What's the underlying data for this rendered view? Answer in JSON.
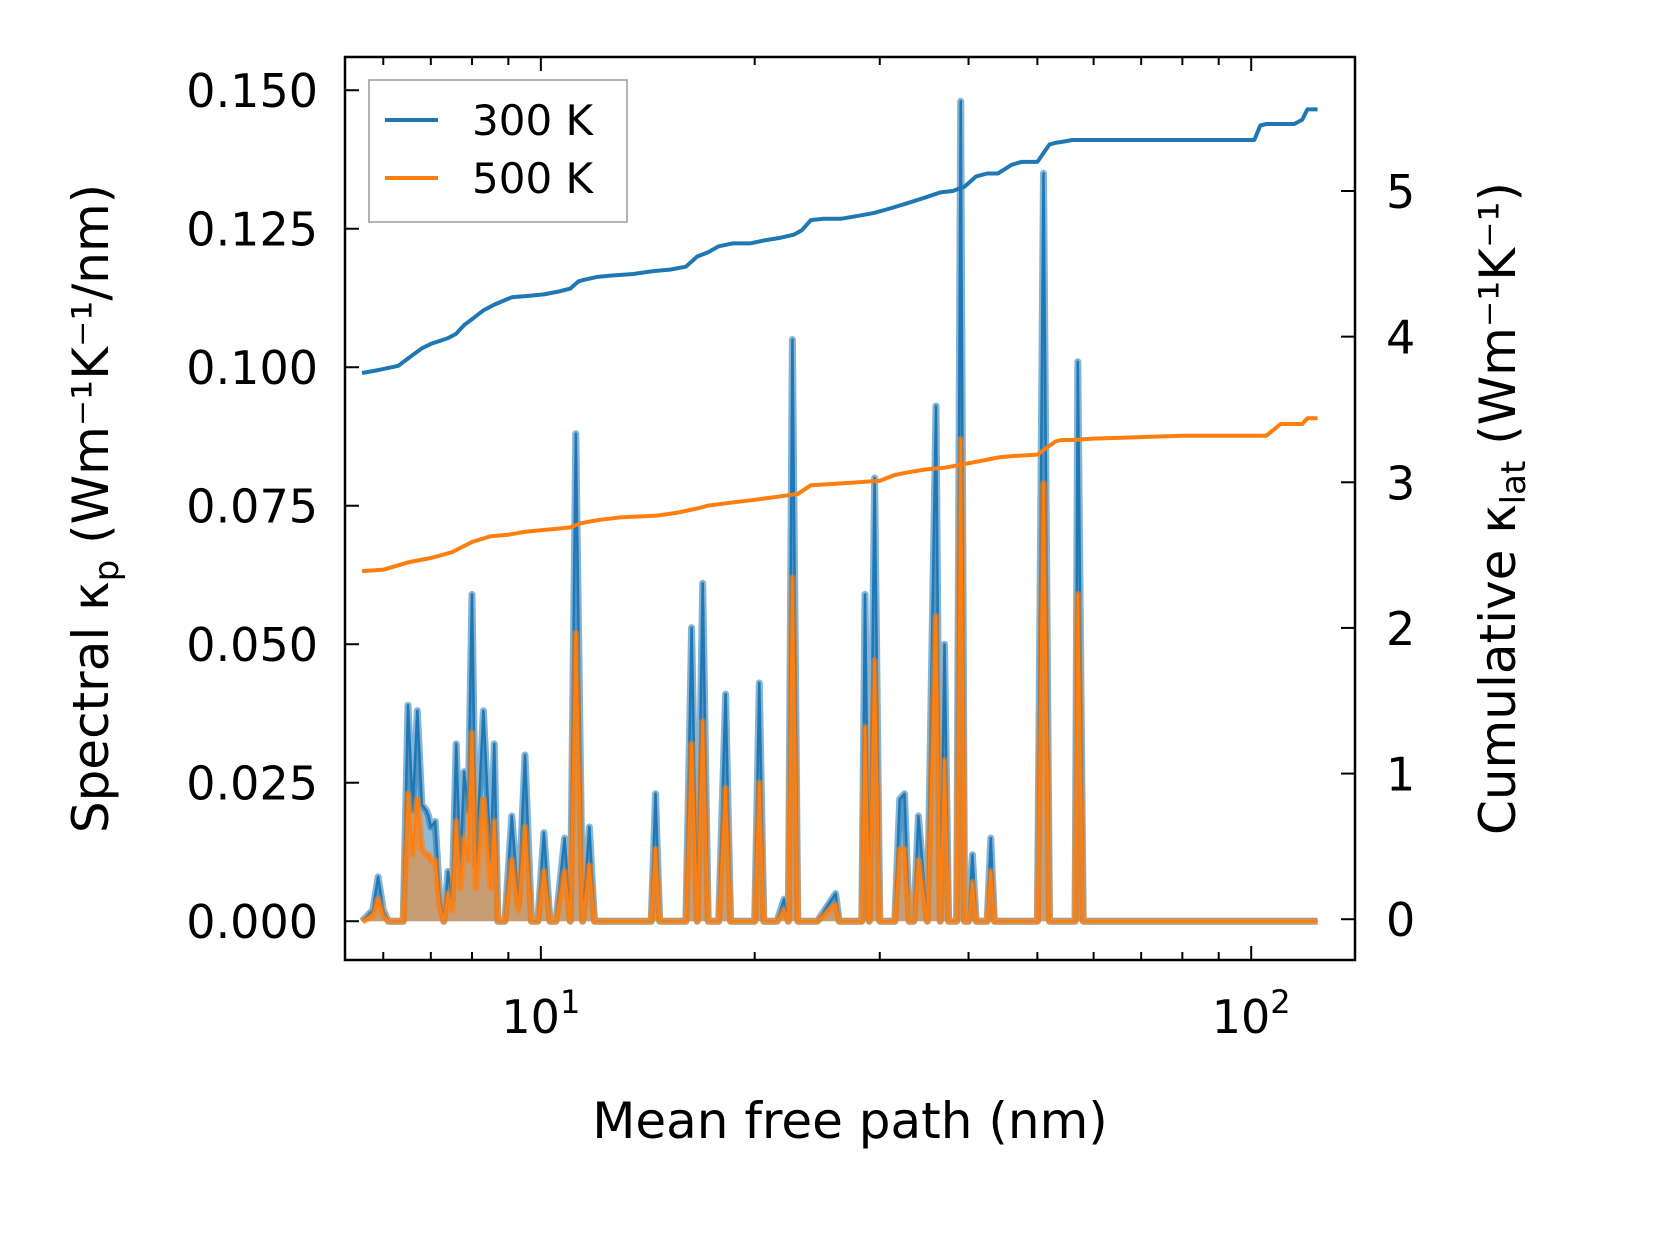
{
  "chart_data": {
    "type": "line",
    "xlabel": "Mean free path (nm)",
    "ylabel_left": "Spectral κ",
    "ylabel_left_sub": "p",
    "ylabel_left_units": "(Wm⁻¹K⁻¹/nm)",
    "ylabel_right": "Cumulative κ",
    "ylabel_right_sub": "lat",
    "ylabel_right_units": "(Wm⁻¹K⁻¹)",
    "xscale": "log",
    "xlim": [
      5.3,
      140
    ],
    "ylim_left": [
      -0.007,
      0.156
    ],
    "ylim_right": [
      -0.28,
      5.92
    ],
    "xticks": [
      {
        "value": 10,
        "base": "10",
        "exp": "1"
      },
      {
        "value": 100,
        "base": "10",
        "exp": "2"
      }
    ],
    "yticks_left": [
      "0.000",
      "0.025",
      "0.050",
      "0.075",
      "0.100",
      "0.125",
      "0.150"
    ],
    "yticks_left_values": [
      0,
      0.025,
      0.05,
      0.075,
      0.1,
      0.125,
      0.15
    ],
    "yticks_right": [
      "0",
      "1",
      "2",
      "3",
      "4",
      "5"
    ],
    "yticks_right_values": [
      0,
      1,
      2,
      3,
      4,
      5
    ],
    "legend": {
      "location": "upper-left",
      "entries": [
        "300 K",
        "500 K"
      ]
    },
    "series": [
      {
        "name": "300 K",
        "color": "#1f77b4",
        "spectral_x": [
          5.6,
          5.8,
          5.9,
          6.0,
          6.1,
          6.4,
          6.5,
          6.6,
          6.7,
          6.8,
          6.9,
          6.95,
          7.0,
          7.1,
          7.2,
          7.3,
          7.4,
          7.5,
          7.6,
          7.7,
          7.8,
          7.9,
          8.0,
          8.1,
          8.3,
          8.5,
          8.6,
          8.7,
          8.8,
          8.9,
          9.1,
          9.3,
          9.5,
          9.7,
          9.9,
          10.1,
          10.3,
          10.5,
          10.8,
          11.0,
          11.2,
          11.45,
          11.7,
          11.9,
          12.1,
          12.3,
          12.6,
          14.3,
          14.5,
          14.7,
          16.0,
          16.3,
          16.6,
          16.9,
          17.2,
          17.5,
          17.8,
          18.2,
          18.5,
          18.8,
          20.0,
          20.3,
          20.6,
          21.5,
          22.0,
          22.3,
          22.6,
          23.0,
          23.3,
          23.7,
          24.0,
          24.5,
          26.0,
          26.3,
          26.6,
          27.5,
          28.0,
          28.3,
          28.6,
          29.0,
          29.5,
          30.0,
          30.5,
          31.0,
          31.5,
          32.0,
          32.5,
          33.0,
          33.5,
          34.0,
          35.0,
          36.0,
          36.5,
          37.0,
          37.5,
          38.0,
          38.5,
          39.0,
          39.5,
          40.0,
          40.5,
          41.0,
          41.5,
          42.0,
          42.5,
          43.0,
          43.5,
          44.5,
          45.0,
          45.5,
          46.0,
          50.0,
          51.0,
          52.0,
          52.5,
          53.0,
          56.0,
          56.5,
          57.0,
          58.0,
          64.0,
          65.0,
          66.0,
          102.0,
          104.0,
          106.0,
          108.0,
          110.0,
          117.0,
          118.0,
          120.0,
          122.0,
          124.0
        ],
        "spectral_y": [
          0.0,
          0.002,
          0.008,
          0.002,
          0.0,
          0.0,
          0.039,
          0.02,
          0.038,
          0.021,
          0.02,
          0.019,
          0.017,
          0.018,
          0.005,
          0.0,
          0.009,
          0.004,
          0.032,
          0.01,
          0.027,
          0.02,
          0.059,
          0.01,
          0.038,
          0.011,
          0.032,
          0.0,
          0.0,
          0.0,
          0.019,
          0.003,
          0.03,
          0.0,
          0.0,
          0.016,
          0.0,
          0.0,
          0.015,
          0.0,
          0.088,
          0.0,
          0.017,
          0.0,
          0.0,
          0.0,
          0.0,
          0.0,
          0.023,
          0.0,
          0.0,
          0.053,
          0.0,
          0.061,
          0.0,
          0.0,
          0.0,
          0.041,
          0.0,
          0.0,
          0.0,
          0.043,
          0.0,
          0.0,
          0.004,
          0.0,
          0.105,
          0.0,
          0.0,
          0.0,
          0.0,
          0.0,
          0.005,
          0.0,
          0.0,
          0.0,
          0.0,
          0.0,
          0.059,
          0.0,
          0.08,
          0.0,
          0.0,
          0.0,
          0.0,
          0.022,
          0.023,
          0.0,
          0.0,
          0.019,
          0.0,
          0.093,
          0.0,
          0.05,
          0.0,
          0.0,
          0.0,
          0.148,
          0.0,
          0.0,
          0.012,
          0.0,
          0.0,
          0.0,
          0.0,
          0.015,
          0.0,
          0.0,
          0.0,
          0.0,
          0.0,
          0.0,
          0.135,
          0.0,
          0.0,
          0.0,
          0.0,
          0.0,
          0.101,
          0.0,
          0.0,
          0.0,
          0.0,
          0.0,
          0.0,
          0.0,
          0.0,
          0.0,
          0.0,
          0.0,
          0.0,
          0.0,
          0.0
        ],
        "cumulative_x": [
          5.6,
          5.9,
          6.3,
          6.5,
          6.8,
          7.0,
          7.2,
          7.4,
          7.6,
          7.8,
          8.0,
          8.3,
          8.6,
          9.1,
          9.6,
          10.1,
          10.6,
          11.0,
          11.3,
          11.5,
          12.0,
          12.6,
          13.5,
          14.4,
          15.2,
          16.0,
          16.6,
          17.2,
          17.8,
          18.6,
          19.7,
          20.6,
          21.8,
          22.7,
          23.3,
          24.0,
          25.0,
          26.5,
          28.0,
          29.5,
          31.0,
          32.5,
          33.5,
          35.0,
          36.5,
          38.0,
          39.5,
          41.0,
          42.5,
          44.0,
          45.0,
          46.0,
          47.5,
          49.0,
          50.0,
          52.0,
          53.0,
          54.5,
          56.0,
          57.5,
          60.0,
          65.0,
          75.0,
          85.0,
          95.0,
          101.0,
          103.0,
          105.0,
          110.0,
          115.0,
          118.0,
          120.0,
          124.0
        ],
        "cumulative_y": [
          3.75,
          3.77,
          3.8,
          3.85,
          3.92,
          3.95,
          3.97,
          3.99,
          4.02,
          4.08,
          4.12,
          4.18,
          4.22,
          4.27,
          4.28,
          4.29,
          4.31,
          4.33,
          4.38,
          4.39,
          4.41,
          4.42,
          4.43,
          4.45,
          4.46,
          4.48,
          4.55,
          4.58,
          4.62,
          4.64,
          4.64,
          4.66,
          4.68,
          4.7,
          4.73,
          4.8,
          4.81,
          4.81,
          4.83,
          4.85,
          4.88,
          4.91,
          4.93,
          4.96,
          4.99,
          5.0,
          5.03,
          5.1,
          5.12,
          5.12,
          5.15,
          5.18,
          5.2,
          5.2,
          5.2,
          5.32,
          5.33,
          5.34,
          5.35,
          5.35,
          5.35,
          5.35,
          5.35,
          5.35,
          5.35,
          5.35,
          5.45,
          5.46,
          5.46,
          5.46,
          5.49,
          5.56,
          5.56
        ]
      },
      {
        "name": "500 K",
        "color": "#ff7f0e",
        "spectral_x": [
          5.6,
          5.8,
          5.9,
          6.0,
          6.1,
          6.4,
          6.5,
          6.6,
          6.7,
          6.8,
          6.9,
          6.95,
          7.0,
          7.1,
          7.2,
          7.3,
          7.4,
          7.5,
          7.6,
          7.7,
          7.8,
          7.9,
          8.0,
          8.1,
          8.3,
          8.5,
          8.6,
          8.7,
          8.8,
          8.9,
          9.1,
          9.3,
          9.5,
          9.7,
          9.9,
          10.1,
          10.3,
          10.5,
          10.8,
          11.0,
          11.2,
          11.45,
          11.7,
          11.9,
          12.1,
          12.3,
          12.6,
          14.3,
          14.5,
          14.7,
          16.0,
          16.3,
          16.6,
          16.9,
          17.2,
          17.5,
          17.8,
          18.2,
          18.5,
          18.8,
          20.0,
          20.3,
          20.6,
          21.5,
          22.0,
          22.3,
          22.6,
          23.0,
          23.3,
          23.7,
          24.0,
          24.5,
          26.0,
          26.3,
          26.6,
          27.5,
          28.0,
          28.3,
          28.6,
          29.0,
          29.5,
          30.0,
          30.5,
          31.0,
          31.5,
          32.0,
          32.5,
          33.0,
          33.5,
          34.0,
          35.0,
          36.0,
          36.5,
          37.0,
          37.5,
          38.0,
          38.5,
          39.0,
          39.5,
          40.0,
          40.5,
          41.0,
          41.5,
          42.0,
          42.5,
          43.0,
          43.5,
          44.5,
          45.0,
          45.5,
          46.0,
          50.0,
          51.0,
          52.0,
          52.5,
          53.0,
          56.0,
          56.5,
          57.0,
          58.0,
          64.0,
          65.0,
          66.0,
          102.0,
          104.0,
          106.0,
          108.0,
          110.0,
          117.0,
          118.0,
          120.0,
          122.0,
          124.0
        ],
        "spectral_y": [
          0.0,
          0.001,
          0.004,
          0.001,
          0.0,
          0.0,
          0.023,
          0.012,
          0.022,
          0.013,
          0.012,
          0.012,
          0.011,
          0.011,
          0.003,
          0.0,
          0.005,
          0.002,
          0.018,
          0.006,
          0.015,
          0.011,
          0.034,
          0.006,
          0.022,
          0.006,
          0.018,
          0.0,
          0.0,
          0.0,
          0.011,
          0.002,
          0.017,
          0.0,
          0.0,
          0.009,
          0.0,
          0.0,
          0.009,
          0.0,
          0.052,
          0.0,
          0.01,
          0.0,
          0.0,
          0.0,
          0.0,
          0.0,
          0.013,
          0.0,
          0.0,
          0.032,
          0.0,
          0.036,
          0.0,
          0.0,
          0.0,
          0.024,
          0.0,
          0.0,
          0.0,
          0.025,
          0.0,
          0.0,
          0.002,
          0.0,
          0.062,
          0.0,
          0.0,
          0.0,
          0.0,
          0.0,
          0.003,
          0.0,
          0.0,
          0.0,
          0.0,
          0.0,
          0.035,
          0.0,
          0.047,
          0.0,
          0.0,
          0.0,
          0.0,
          0.013,
          0.013,
          0.0,
          0.0,
          0.011,
          0.0,
          0.055,
          0.0,
          0.029,
          0.0,
          0.0,
          0.0,
          0.087,
          0.0,
          0.0,
          0.007,
          0.0,
          0.0,
          0.0,
          0.0,
          0.009,
          0.0,
          0.0,
          0.0,
          0.0,
          0.0,
          0.0,
          0.079,
          0.0,
          0.0,
          0.0,
          0.0,
          0.0,
          0.059,
          0.0,
          0.0,
          0.0,
          0.0,
          0.0,
          0.0,
          0.0,
          0.0,
          0.0,
          0.0,
          0.0,
          0.0,
          0.0,
          0.0
        ],
        "cumulative_x": [
          5.6,
          6.0,
          6.5,
          7.0,
          7.5,
          8.0,
          8.5,
          9.0,
          9.5,
          10.0,
          10.5,
          11.0,
          11.4,
          12.0,
          13.0,
          14.5,
          15.5,
          16.6,
          17.2,
          18.5,
          20.0,
          21.5,
          23.0,
          24.0,
          26.0,
          28.0,
          30.0,
          31.5,
          33.0,
          35.0,
          37.0,
          40.0,
          42.0,
          44.0,
          46.0,
          50.0,
          53.0,
          54.0,
          56.0,
          60.0,
          70.0,
          80.0,
          90.0,
          100.0,
          105.0,
          110.0,
          118.0,
          120.0,
          124.0
        ],
        "cumulative_y": [
          2.39,
          2.4,
          2.45,
          2.48,
          2.52,
          2.59,
          2.63,
          2.64,
          2.66,
          2.67,
          2.68,
          2.69,
          2.72,
          2.74,
          2.76,
          2.77,
          2.79,
          2.82,
          2.84,
          2.86,
          2.88,
          2.9,
          2.92,
          2.98,
          2.99,
          3.0,
          3.01,
          3.05,
          3.07,
          3.09,
          3.1,
          3.13,
          3.15,
          3.17,
          3.18,
          3.19,
          3.28,
          3.29,
          3.29,
          3.3,
          3.31,
          3.32,
          3.32,
          3.32,
          3.32,
          3.4,
          3.4,
          3.44,
          3.44
        ]
      }
    ]
  }
}
